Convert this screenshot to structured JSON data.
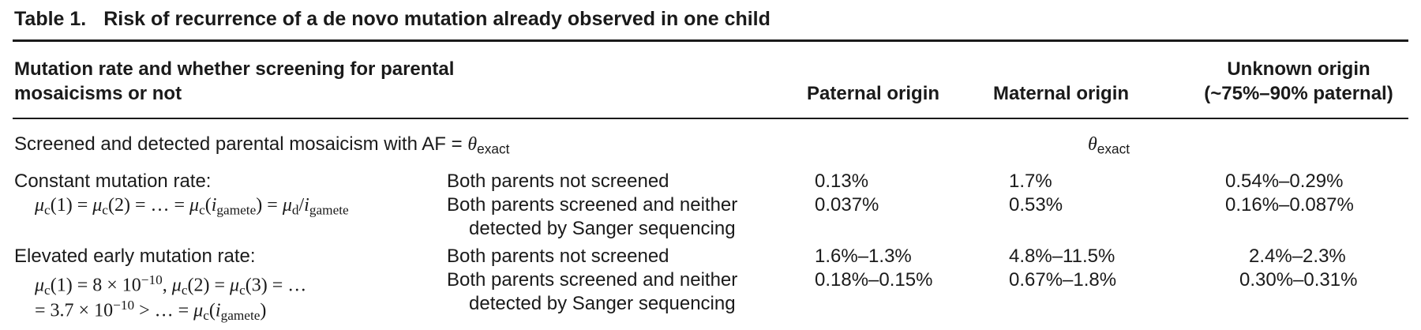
{
  "table": {
    "number": "Table 1.",
    "caption": "Risk of recurrence of a de novo mutation already observed in one child"
  },
  "headers": {
    "col1_line1": "Mutation rate and whether screening for parental",
    "col1_line2": "mosaicisms or not",
    "paternal": "Paternal origin",
    "maternal": "Maternal origin",
    "unknown_line1": "Unknown origin",
    "unknown_line2": "(~75%–90% paternal)"
  },
  "screened_row": {
    "label": "Screened and detected parental mosaicism with AF =",
    "theta": "θ",
    "theta_sub": "exact",
    "value_theta": "θ",
    "value_sub": "exact"
  },
  "constant": {
    "label": "Constant mutation rate:",
    "formula": {
      "mu": "μ",
      "c": "c",
      "d": "d",
      "gamete": "gamete",
      "i": "i",
      "p1": "(1) = ",
      "p2": "(2) = … = ",
      "p3": "(",
      "p4": ") = ",
      "p5": "/"
    },
    "rows": [
      {
        "screening": "Both parents not screened",
        "paternal": "0.13%",
        "maternal": "1.7%",
        "unknown": "0.54%–0.29%"
      },
      {
        "screening": "Both parents screened and neither",
        "screening_cont": "detected by Sanger sequencing",
        "paternal": "0.037%",
        "maternal": "0.53%",
        "unknown": "0.16%–0.087%"
      }
    ]
  },
  "elevated": {
    "label": "Elevated early mutation rate:",
    "formula": {
      "line1_a": "(1) = 8 × 10",
      "exp1": "−10",
      "line1_b": ", ",
      "line1_c": "(2) = ",
      "line1_d": "(3) = …",
      "line2_a": "= 3.7 × 10",
      "exp2": "−10",
      "line2_b": " > … = ",
      "line2_c": "(",
      "line2_d": ")"
    },
    "rows": [
      {
        "screening": "Both parents not screened",
        "paternal": "1.6%–1.3%",
        "maternal": "4.8%–11.5%",
        "unknown": "2.4%–2.3%"
      },
      {
        "screening": "Both parents screened and neither",
        "screening_cont": "detected by Sanger sequencing",
        "paternal": "0.18%–0.15%",
        "maternal": "0.67%–1.8%",
        "unknown": "0.30%–0.31%"
      }
    ]
  }
}
